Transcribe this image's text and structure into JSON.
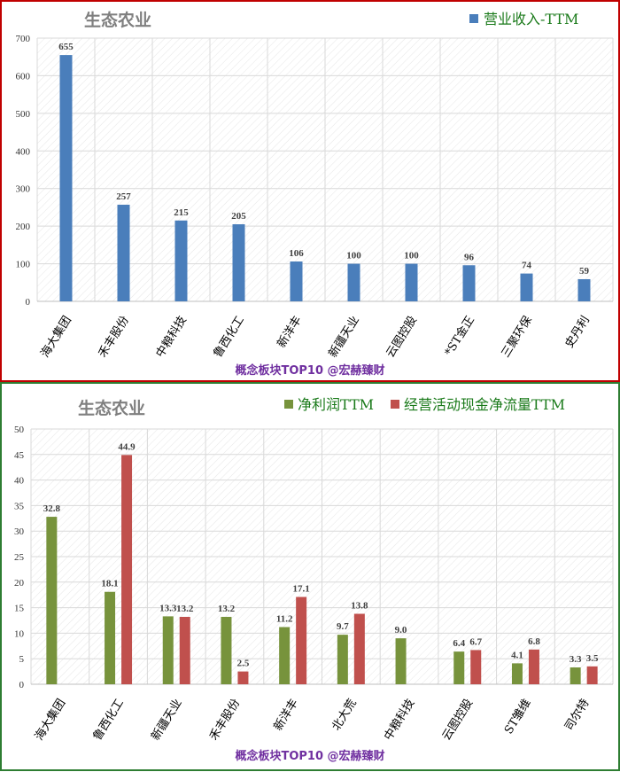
{
  "chart_data": [
    {
      "type": "bar",
      "title": "生态农业",
      "footer": "概念板块TOP10 @宏赫臻财",
      "categories": [
        "海大集团",
        "禾丰股份",
        "中粮科技",
        "鲁西化工",
        "新洋丰",
        "新疆天业",
        "云图控股",
        "*ST金正",
        "三聚环保",
        "史丹利"
      ],
      "series": [
        {
          "name": "营业收入-TTM",
          "color": "#4a7ebb",
          "values": [
            655,
            257,
            215,
            205,
            106,
            100,
            100,
            96,
            74,
            59
          ]
        }
      ],
      "value_labels": [
        [
          "655",
          "257",
          "215",
          "205",
          "106",
          "100",
          "100",
          "96",
          "74",
          "59"
        ]
      ],
      "ylim": [
        0,
        700
      ],
      "yticks": [
        0,
        100,
        200,
        300,
        400,
        500,
        600,
        700
      ],
      "ytick_labels": [
        "0",
        "100",
        "200",
        "300",
        "400",
        "500",
        "600",
        "700"
      ],
      "legend_position": "top-right",
      "grid": true,
      "border_color": "#c00000"
    },
    {
      "type": "bar",
      "title": "生态农业",
      "footer": "概念板块TOP10 @宏赫臻财",
      "categories": [
        "海大集团",
        "鲁西化工",
        "新疆天业",
        "禾丰股份",
        "新洋丰",
        "北大荒",
        "中粮科技",
        "云图控股",
        "ST雏维",
        "司尔特"
      ],
      "series": [
        {
          "name": "净利润TTM",
          "color": "#77933c",
          "values": [
            32.8,
            18.1,
            13.3,
            13.2,
            11.2,
            9.7,
            9.0,
            6.4,
            4.1,
            3.3
          ]
        },
        {
          "name": "经营活动现金净流量TTM",
          "color": "#c0504d",
          "values": [
            null,
            44.9,
            13.2,
            2.5,
            17.1,
            13.8,
            null,
            6.7,
            6.8,
            3.5
          ]
        }
      ],
      "value_labels": [
        [
          "32.8",
          "18.1",
          "13.3",
          "13.2",
          "11.2",
          "9.7",
          "9.0",
          "6.4",
          "4.1",
          "3.3"
        ],
        [
          "",
          "44.9",
          "13.2",
          "2.5",
          "17.1",
          "13.8",
          "",
          "6.7",
          "6.8",
          "3.5"
        ]
      ],
      "ylim": [
        0,
        50
      ],
      "yticks": [
        0,
        5,
        10,
        15,
        20,
        25,
        30,
        35,
        40,
        45,
        50
      ],
      "ytick_labels": [
        "0",
        "5",
        "10",
        "15",
        "20",
        "25",
        "30",
        "35",
        "40",
        "45",
        "50"
      ],
      "legend_position": "top-right",
      "grid": true,
      "border_color": "#2e7d32"
    }
  ]
}
